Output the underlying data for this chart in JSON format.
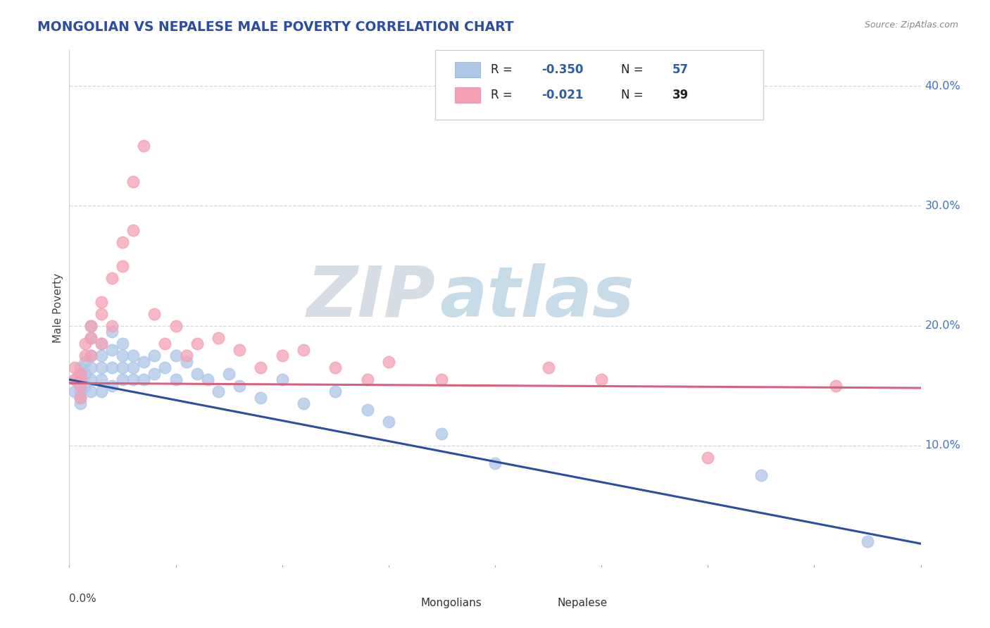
{
  "title": "MONGOLIAN VS NEPALESE MALE POVERTY CORRELATION CHART",
  "source": "Source: ZipAtlas.com",
  "ylabel": "Male Poverty",
  "yticks": [
    0.1,
    0.2,
    0.3,
    0.4
  ],
  "ytick_labels": [
    "10.0%",
    "20.0%",
    "30.0%",
    "40.0%"
  ],
  "xlim": [
    0.0,
    0.08
  ],
  "ylim": [
    0.0,
    0.43
  ],
  "mongolian_R": -0.35,
  "mongolian_N": 57,
  "nepalese_R": -0.021,
  "nepalese_N": 39,
  "mongolian_color": "#aec6e8",
  "nepalese_color": "#f4a0b5",
  "mongolian_line_color": "#2b4fa0",
  "nepalese_line_color": "#d9607e",
  "background_color": "#ffffff",
  "title_color": "#2b4ea0",
  "source_color": "#888888",
  "grid_color": "#c8d8e8",
  "right_label_color": "#4472c4",
  "mongolian_x": [
    0.0005,
    0.0005,
    0.001,
    0.001,
    0.001,
    0.001,
    0.001,
    0.001,
    0.001,
    0.0015,
    0.0015,
    0.0015,
    0.002,
    0.002,
    0.002,
    0.002,
    0.002,
    0.002,
    0.003,
    0.003,
    0.003,
    0.003,
    0.003,
    0.004,
    0.004,
    0.004,
    0.004,
    0.005,
    0.005,
    0.005,
    0.005,
    0.006,
    0.006,
    0.006,
    0.007,
    0.007,
    0.008,
    0.008,
    0.009,
    0.01,
    0.01,
    0.011,
    0.012,
    0.013,
    0.014,
    0.015,
    0.016,
    0.018,
    0.02,
    0.022,
    0.025,
    0.028,
    0.03,
    0.035,
    0.04,
    0.065,
    0.075
  ],
  "mongolian_y": [
    0.155,
    0.145,
    0.165,
    0.16,
    0.155,
    0.15,
    0.145,
    0.14,
    0.135,
    0.17,
    0.16,
    0.15,
    0.2,
    0.19,
    0.175,
    0.165,
    0.155,
    0.145,
    0.185,
    0.175,
    0.165,
    0.155,
    0.145,
    0.195,
    0.18,
    0.165,
    0.15,
    0.185,
    0.175,
    0.165,
    0.155,
    0.175,
    0.165,
    0.155,
    0.17,
    0.155,
    0.175,
    0.16,
    0.165,
    0.175,
    0.155,
    0.17,
    0.16,
    0.155,
    0.145,
    0.16,
    0.15,
    0.14,
    0.155,
    0.135,
    0.145,
    0.13,
    0.12,
    0.11,
    0.085,
    0.075,
    0.02
  ],
  "nepalese_x": [
    0.0005,
    0.0005,
    0.001,
    0.001,
    0.001,
    0.001,
    0.0015,
    0.0015,
    0.002,
    0.002,
    0.002,
    0.003,
    0.003,
    0.003,
    0.004,
    0.004,
    0.005,
    0.005,
    0.006,
    0.006,
    0.007,
    0.008,
    0.009,
    0.01,
    0.011,
    0.012,
    0.014,
    0.016,
    0.018,
    0.02,
    0.022,
    0.025,
    0.028,
    0.03,
    0.035,
    0.045,
    0.05,
    0.06,
    0.072
  ],
  "nepalese_y": [
    0.165,
    0.155,
    0.16,
    0.155,
    0.15,
    0.14,
    0.185,
    0.175,
    0.2,
    0.19,
    0.175,
    0.22,
    0.21,
    0.185,
    0.24,
    0.2,
    0.27,
    0.25,
    0.32,
    0.28,
    0.35,
    0.21,
    0.185,
    0.2,
    0.175,
    0.185,
    0.19,
    0.18,
    0.165,
    0.175,
    0.18,
    0.165,
    0.155,
    0.17,
    0.155,
    0.165,
    0.155,
    0.09,
    0.15
  ],
  "mong_line_x0": 0.0,
  "mong_line_y0": 0.155,
  "mong_line_x1": 0.08,
  "mong_line_y1": 0.018,
  "nep_line_x0": 0.0,
  "nep_line_y0": 0.152,
  "nep_line_x1": 0.08,
  "nep_line_y1": 0.148
}
